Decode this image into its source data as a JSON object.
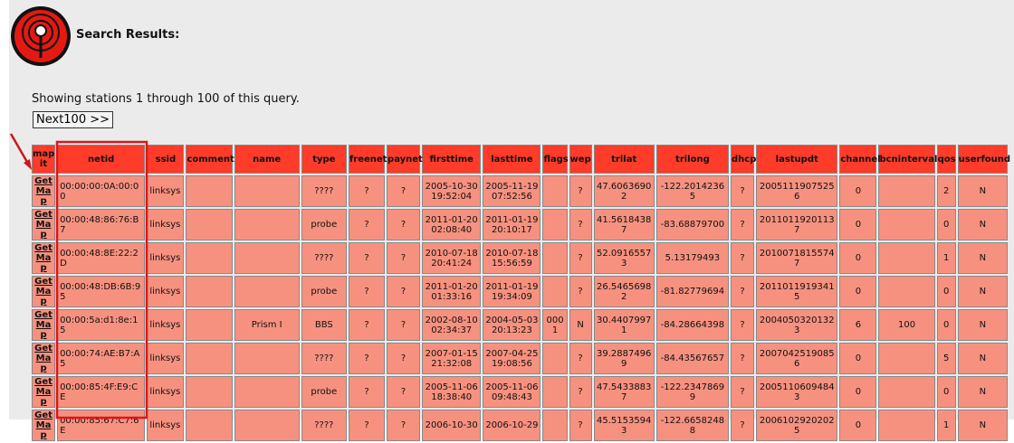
{
  "header": {
    "title": "Search Results:"
  },
  "summary": "Showing stations 1 through 100 of this query.",
  "next_button": "Next100 >>",
  "table": {
    "headers": [
      "map it",
      "netid",
      "ssid",
      "comment",
      "name",
      "type",
      "freenet",
      "paynet",
      "firsttime",
      "lasttime",
      "flags",
      "wep",
      "trilat",
      "trilong",
      "dhcp",
      "lastupdt",
      "channel",
      "bcninterval",
      "qos",
      "userfound"
    ],
    "rows": [
      [
        "Get Map",
        "00:00:00:0A:00:00",
        "linksys",
        null,
        null,
        "????",
        "?",
        "?",
        "2005-10-30 19:52:04",
        "2005-11-19 07:52:56",
        null,
        "?",
        "47.60636902",
        "-122.20142365",
        "?",
        "20051119075256",
        "0",
        null,
        "2",
        "N"
      ],
      [
        "Get Map",
        "00:00:48:86:76:B7",
        "linksys",
        null,
        null,
        "probe",
        "?",
        "?",
        "2011-01-20 02:08:40",
        "2011-01-19 20:10:17",
        null,
        "?",
        "41.56184387",
        "-83.68879700",
        "?",
        "20110119201137",
        "0",
        null,
        "0",
        "N"
      ],
      [
        "Get Map",
        "00:00:48:8E:22:2D",
        "linksys",
        null,
        null,
        "????",
        "?",
        "?",
        "2010-07-18 20:41:24",
        "2010-07-18 15:56:59",
        null,
        "?",
        "52.09165573",
        "5.13179493",
        "?",
        "20100718155747",
        "0",
        null,
        "1",
        "N"
      ],
      [
        "Get Map",
        "00:00:48:DB:6B:95",
        "linksys",
        null,
        null,
        "probe",
        "?",
        "?",
        "2011-01-20 01:33:16",
        "2011-01-19 19:34:09",
        null,
        "?",
        "26.54656982",
        "-81.82779694",
        "?",
        "20110119193415",
        "0",
        null,
        "0",
        "N"
      ],
      [
        "Get Map",
        "00:00:5a:d1:8e:15",
        "linksys",
        null,
        "Prism I",
        "BBS",
        "?",
        "?",
        "2002-08-10 02:34:37",
        "2004-05-03 20:13:23",
        "0001",
        "N",
        "30.44079971",
        "-84.28664398",
        "?",
        "20040503201323",
        "6",
        "100",
        "0",
        "N"
      ],
      [
        "Get Map",
        "00:00:74:AE:B7:A5",
        "linksys",
        null,
        null,
        "????",
        "?",
        "?",
        "2007-01-15 21:32:08",
        "2007-04-25 19:08:56",
        null,
        "?",
        "39.28874969",
        "-84.43567657",
        "?",
        "20070425190856",
        "0",
        null,
        "5",
        "N"
      ],
      [
        "Get Map",
        "00:00:85:4F:E9:CE",
        "linksys",
        null,
        null,
        "probe",
        "?",
        "?",
        "2005-11-06 18:38:40",
        "2005-11-06 09:48:43",
        null,
        "?",
        "47.54338837",
        "-122.23478699",
        "?",
        "20051106094843",
        "0",
        null,
        "0",
        "N"
      ],
      [
        "Get Map",
        "00:00:85:67:C7:6E",
        "linksys",
        null,
        null,
        "????",
        "?",
        "?",
        "2006-10-30",
        "2006-10-29",
        null,
        "?",
        "45.51535943",
        "-122.66582488",
        "?",
        "20061029202025",
        "0",
        null,
        "1",
        "N"
      ]
    ]
  }
}
